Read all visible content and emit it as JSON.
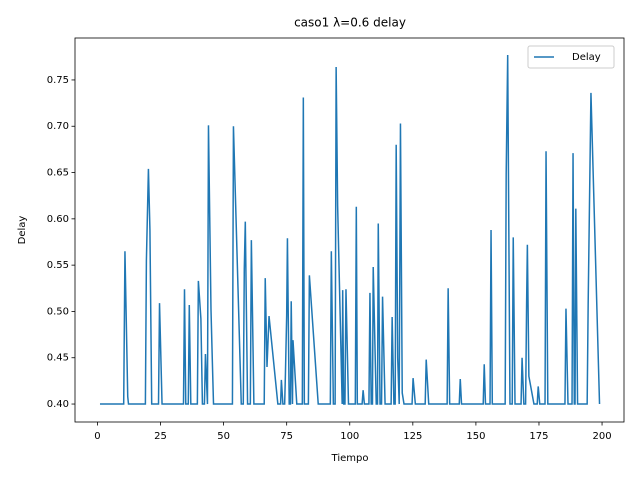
{
  "chart_data": {
    "type": "line",
    "title": "caso1 λ=0.6 delay",
    "x_label": "Tiempo",
    "y_label": "Delay",
    "x": [
      1,
      10.4,
      10.9,
      12,
      12.3,
      19,
      19.4,
      20.2,
      20.8,
      21.5,
      24.2,
      24.6,
      25.6,
      34.1,
      34.5,
      35,
      36,
      36.4,
      37,
      39.6,
      40,
      41,
      41.6,
      42.4,
      42.8,
      43.6,
      44,
      45,
      45.5,
      46,
      53.5,
      53.9,
      57,
      57.8,
      58.2,
      58.6,
      59.5,
      60.6,
      61,
      62,
      66.1,
      66.5,
      67.2,
      68,
      71.5,
      72.6,
      72.9,
      73.5,
      74.2,
      74.5,
      75,
      75.3,
      76,
      76.5,
      76.8,
      77.3,
      77.5,
      79,
      81.2,
      81.6,
      82,
      83.6,
      84,
      87.5,
      92.3,
      92.7,
      93.5,
      94.2,
      94.6,
      95.2,
      97,
      97.2,
      97.6,
      98.1,
      98.5,
      99.5,
      102.2,
      102.6,
      103,
      104.9,
      105.3,
      105.8,
      107.6,
      108,
      108.5,
      109,
      109.3,
      110.5,
      111,
      111.3,
      112,
      112.6,
      113,
      114,
      116.4,
      116.8,
      117.5,
      118,
      118.4,
      119,
      119.6,
      120.1,
      120.8,
      121.5,
      124.7,
      125.1,
      126,
      129.9,
      130.3,
      131.3,
      138.6,
      139,
      139.6,
      143.4,
      143.8,
      144.3,
      152.9,
      153.3,
      153.8,
      155.6,
      156,
      156.5,
      161.6,
      162,
      162.6,
      163.5,
      164.4,
      164.8,
      165.5,
      167.9,
      168.3,
      169,
      169.7,
      170.1,
      170.4,
      171,
      173,
      174.3,
      174.7,
      175.3,
      177.4,
      177.8,
      178.5,
      185.3,
      185.7,
      186.5,
      188.1,
      188.5,
      189,
      189.3,
      189.6,
      190.3,
      194.1,
      194.5,
      195.6,
      199
    ],
    "series": [
      {
        "name": "Delay",
        "color": "#1f77b4",
        "values": [
          0.4,
          0.4,
          0.565,
          0.408,
          0.4,
          0.4,
          0.555,
          0.654,
          0.588,
          0.4,
          0.4,
          0.509,
          0.4,
          0.4,
          0.524,
          0.4,
          0.4,
          0.507,
          0.4,
          0.4,
          0.533,
          0.492,
          0.4,
          0.4,
          0.454,
          0.4,
          0.701,
          0.502,
          0.45,
          0.4,
          0.4,
          0.7,
          0.4,
          0.4,
          0.546,
          0.597,
          0.4,
          0.4,
          0.577,
          0.4,
          0.4,
          0.536,
          0.44,
          0.495,
          0.4,
          0.4,
          0.426,
          0.4,
          0.4,
          0.432,
          0.496,
          0.579,
          0.4,
          0.4,
          0.511,
          0.4,
          0.469,
          0.4,
          0.4,
          0.731,
          0.4,
          0.4,
          0.539,
          0.4,
          0.4,
          0.565,
          0.4,
          0.4,
          0.764,
          0.614,
          0.4,
          0.523,
          0.4,
          0.4,
          0.524,
          0.4,
          0.4,
          0.613,
          0.4,
          0.4,
          0.415,
          0.4,
          0.4,
          0.52,
          0.4,
          0.4,
          0.548,
          0.4,
          0.4,
          0.595,
          0.4,
          0.4,
          0.516,
          0.4,
          0.4,
          0.494,
          0.4,
          0.4,
          0.68,
          0.45,
          0.4,
          0.703,
          0.412,
          0.4,
          0.4,
          0.428,
          0.4,
          0.4,
          0.448,
          0.4,
          0.4,
          0.525,
          0.4,
          0.4,
          0.427,
          0.4,
          0.4,
          0.443,
          0.4,
          0.4,
          0.588,
          0.4,
          0.4,
          0.648,
          0.777,
          0.4,
          0.4,
          0.58,
          0.4,
          0.4,
          0.45,
          0.4,
          0.4,
          0.509,
          0.572,
          0.43,
          0.4,
          0.4,
          0.419,
          0.4,
          0.4,
          0.673,
          0.4,
          0.4,
          0.503,
          0.4,
          0.4,
          0.671,
          0.4,
          0.4,
          0.611,
          0.4,
          0.4,
          0.509,
          0.736,
          0.4
        ]
      }
    ],
    "xlim": [
      -8.9,
      208.7
    ],
    "xticks": [
      0,
      25,
      50,
      75,
      100,
      125,
      150,
      175,
      200
    ],
    "ylim": [
      0.3806,
      0.7953
    ],
    "yticks": [
      {
        "value": 0.4,
        "label": "0.40"
      },
      {
        "value": 0.45,
        "label": "0.45"
      },
      {
        "value": 0.5,
        "label": "0.50"
      },
      {
        "value": 0.55,
        "label": "0.55"
      },
      {
        "value": 0.6,
        "label": "0.60"
      },
      {
        "value": 0.65,
        "label": "0.65"
      },
      {
        "value": 0.7,
        "label": "0.70"
      },
      {
        "value": 0.75,
        "label": "0.75"
      }
    ],
    "grid": false,
    "legend": "upper right"
  }
}
